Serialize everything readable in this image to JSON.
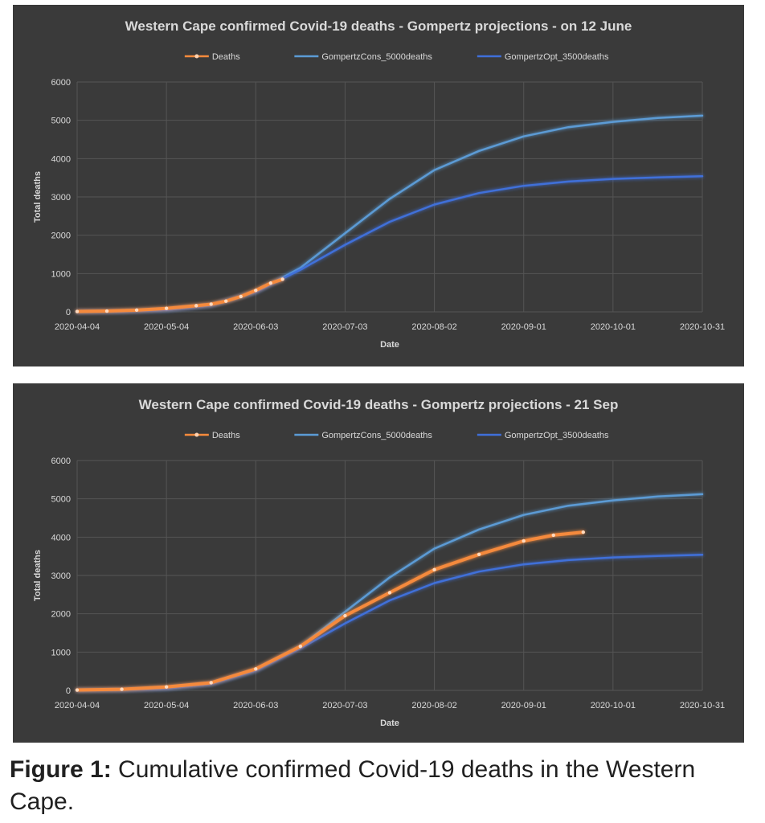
{
  "figure": {
    "caption_label": "Figure 1:",
    "caption_text": " Cumulative confirmed Covid-19 deaths in the Western Cape."
  },
  "colors": {
    "background": "#3a3a3a",
    "grid": "#5a5a5a",
    "text": "#d9d9d9",
    "deaths": "#f58a3c",
    "cons": "#5b9bd5",
    "opt": "#3f6fd9"
  },
  "chart_data": [
    {
      "type": "line",
      "title": "Western Cape confirmed Covid-19 deaths - Gompertz projections - on 12 June",
      "xlabel": "Date",
      "ylabel": "Total deaths",
      "x_type": "date",
      "xlim": [
        "2020-04-04",
        "2020-10-31"
      ],
      "ylim": [
        0,
        6000
      ],
      "y_ticks": [
        0,
        1000,
        2000,
        3000,
        4000,
        5000,
        6000
      ],
      "x_ticks": [
        "2020-04-04",
        "2020-05-04",
        "2020-06-03",
        "2020-07-03",
        "2020-08-02",
        "2020-09-01",
        "2020-10-01",
        "2020-10-31"
      ],
      "legend": "top-center",
      "grid": true,
      "series": [
        {
          "name": "Deaths",
          "color_key": "deaths",
          "markers": true,
          "points": [
            [
              "2020-04-04",
              10
            ],
            [
              "2020-04-14",
              20
            ],
            [
              "2020-04-24",
              45
            ],
            [
              "2020-05-04",
              90
            ],
            [
              "2020-05-14",
              160
            ],
            [
              "2020-05-19",
              200
            ],
            [
              "2020-05-24",
              280
            ],
            [
              "2020-05-29",
              400
            ],
            [
              "2020-06-03",
              560
            ],
            [
              "2020-06-08",
              750
            ],
            [
              "2020-06-12",
              850
            ]
          ]
        },
        {
          "name": "GompertzCons_5000deaths",
          "color_key": "cons",
          "points": [
            [
              "2020-04-04",
              2
            ],
            [
              "2020-04-19",
              10
            ],
            [
              "2020-05-04",
              50
            ],
            [
              "2020-05-19",
              170
            ],
            [
              "2020-06-03",
              520
            ],
            [
              "2020-06-18",
              1150
            ],
            [
              "2020-07-03",
              2050
            ],
            [
              "2020-07-18",
              2950
            ],
            [
              "2020-08-02",
              3700
            ],
            [
              "2020-08-17",
              4200
            ],
            [
              "2020-09-01",
              4580
            ],
            [
              "2020-09-16",
              4820
            ],
            [
              "2020-10-01",
              4960
            ],
            [
              "2020-10-16",
              5060
            ],
            [
              "2020-10-31",
              5120
            ]
          ]
        },
        {
          "name": "GompertzOpt_3500deaths",
          "color_key": "opt",
          "points": [
            [
              "2020-04-04",
              2
            ],
            [
              "2020-04-19",
              10
            ],
            [
              "2020-05-04",
              50
            ],
            [
              "2020-05-19",
              170
            ],
            [
              "2020-06-03",
              520
            ],
            [
              "2020-06-18",
              1100
            ],
            [
              "2020-07-03",
              1750
            ],
            [
              "2020-07-18",
              2350
            ],
            [
              "2020-08-02",
              2800
            ],
            [
              "2020-08-17",
              3100
            ],
            [
              "2020-09-01",
              3290
            ],
            [
              "2020-09-16",
              3400
            ],
            [
              "2020-10-01",
              3470
            ],
            [
              "2020-10-16",
              3510
            ],
            [
              "2020-10-31",
              3540
            ]
          ]
        }
      ]
    },
    {
      "type": "line",
      "title": "Western Cape confirmed Covid-19 deaths - Gompertz projections - 21 Sep",
      "xlabel": "Date",
      "ylabel": "Total deaths",
      "x_type": "date",
      "xlim": [
        "2020-04-04",
        "2020-10-31"
      ],
      "ylim": [
        0,
        6000
      ],
      "y_ticks": [
        0,
        1000,
        2000,
        3000,
        4000,
        5000,
        6000
      ],
      "x_ticks": [
        "2020-04-04",
        "2020-05-04",
        "2020-06-03",
        "2020-07-03",
        "2020-08-02",
        "2020-09-01",
        "2020-10-01",
        "2020-10-31"
      ],
      "legend": "top-center",
      "grid": true,
      "series": [
        {
          "name": "Deaths",
          "color_key": "deaths",
          "markers": true,
          "points": [
            [
              "2020-04-04",
              10
            ],
            [
              "2020-04-19",
              30
            ],
            [
              "2020-05-04",
              90
            ],
            [
              "2020-05-19",
              200
            ],
            [
              "2020-06-03",
              560
            ],
            [
              "2020-06-18",
              1150
            ],
            [
              "2020-07-03",
              1950
            ],
            [
              "2020-07-18",
              2550
            ],
            [
              "2020-08-02",
              3150
            ],
            [
              "2020-08-17",
              3550
            ],
            [
              "2020-09-01",
              3900
            ],
            [
              "2020-09-11",
              4050
            ],
            [
              "2020-09-21",
              4130
            ]
          ]
        },
        {
          "name": "GompertzCons_5000deaths",
          "color_key": "cons",
          "points": [
            [
              "2020-04-04",
              2
            ],
            [
              "2020-04-19",
              10
            ],
            [
              "2020-05-04",
              50
            ],
            [
              "2020-05-19",
              170
            ],
            [
              "2020-06-03",
              520
            ],
            [
              "2020-06-18",
              1150
            ],
            [
              "2020-07-03",
              2050
            ],
            [
              "2020-07-18",
              2950
            ],
            [
              "2020-08-02",
              3700
            ],
            [
              "2020-08-17",
              4200
            ],
            [
              "2020-09-01",
              4580
            ],
            [
              "2020-09-16",
              4820
            ],
            [
              "2020-10-01",
              4960
            ],
            [
              "2020-10-16",
              5060
            ],
            [
              "2020-10-31",
              5120
            ]
          ]
        },
        {
          "name": "GompertzOpt_3500deaths",
          "color_key": "opt",
          "points": [
            [
              "2020-04-04",
              2
            ],
            [
              "2020-04-19",
              10
            ],
            [
              "2020-05-04",
              50
            ],
            [
              "2020-05-19",
              170
            ],
            [
              "2020-06-03",
              520
            ],
            [
              "2020-06-18",
              1100
            ],
            [
              "2020-07-03",
              1750
            ],
            [
              "2020-07-18",
              2350
            ],
            [
              "2020-08-02",
              2800
            ],
            [
              "2020-08-17",
              3100
            ],
            [
              "2020-09-01",
              3290
            ],
            [
              "2020-09-16",
              3400
            ],
            [
              "2020-10-01",
              3470
            ],
            [
              "2020-10-16",
              3510
            ],
            [
              "2020-10-31",
              3540
            ]
          ]
        }
      ]
    }
  ]
}
